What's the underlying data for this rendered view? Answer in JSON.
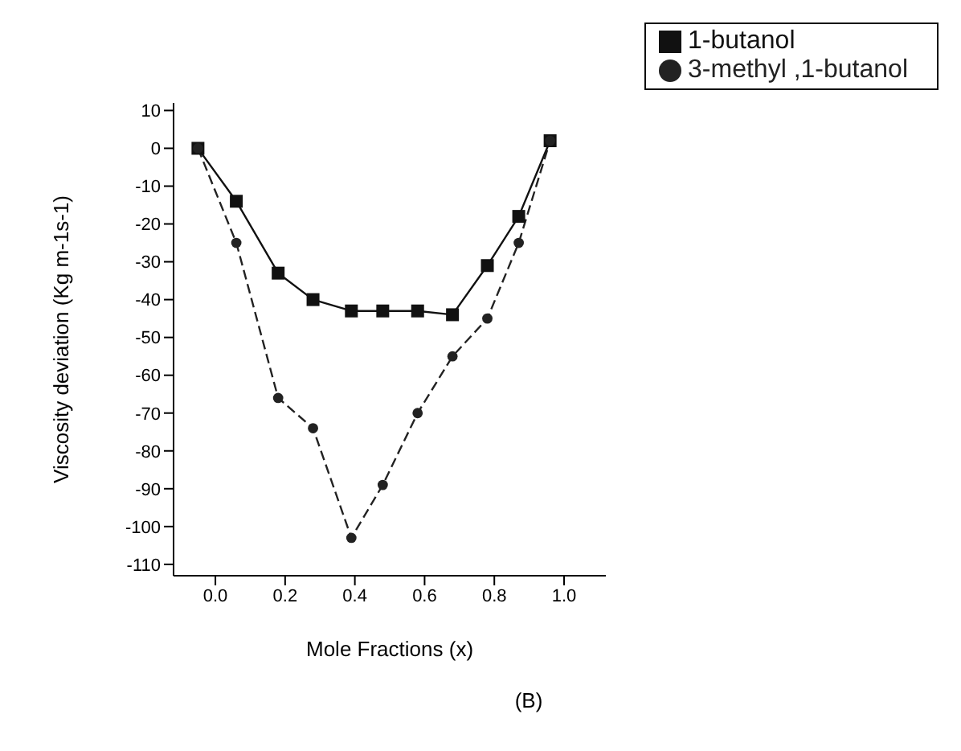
{
  "chart_data": {
    "type": "line",
    "xlabel": "Mole Fractions (x)",
    "ylabel": "Viscosity deviation (Kg m-1s-1)",
    "annotations": [
      "(B)"
    ],
    "x": [
      -0.05,
      0.06,
      0.18,
      0.28,
      0.39,
      0.48,
      0.58,
      0.68,
      0.78,
      0.87,
      0.96
    ],
    "series": [
      {
        "name": "1-butanol",
        "color": "#111111",
        "marker": "square",
        "line_style": "solid",
        "values": [
          0,
          -14,
          -33,
          -40,
          -43,
          -43,
          -43,
          -44,
          -31,
          -18,
          2
        ]
      },
      {
        "name": "3-methyl ,1-butanol",
        "color": "#222222",
        "marker": "circle",
        "line_style": "dashed",
        "values": [
          0,
          -25,
          -66,
          -74,
          -103,
          -89,
          -70,
          -55,
          -45,
          -25,
          2
        ]
      }
    ],
    "xlim": [
      -0.12,
      1.12
    ],
    "xticks": [
      {
        "value": 0,
        "label": "0.0"
      },
      {
        "value": 0.2,
        "label": "0.2"
      },
      {
        "value": 0.4,
        "label": "0.4"
      },
      {
        "value": 0.6,
        "label": "0.6"
      },
      {
        "value": 0.8,
        "label": "0.8"
      },
      {
        "value": 1,
        "label": "1.0"
      }
    ],
    "ylim": [
      -113,
      12
    ],
    "yticks": [
      -110,
      -100,
      -90,
      -80,
      -70,
      -60,
      -50,
      -40,
      -30,
      -20,
      -10,
      0,
      10
    ],
    "grid": false,
    "legend": "top right"
  }
}
